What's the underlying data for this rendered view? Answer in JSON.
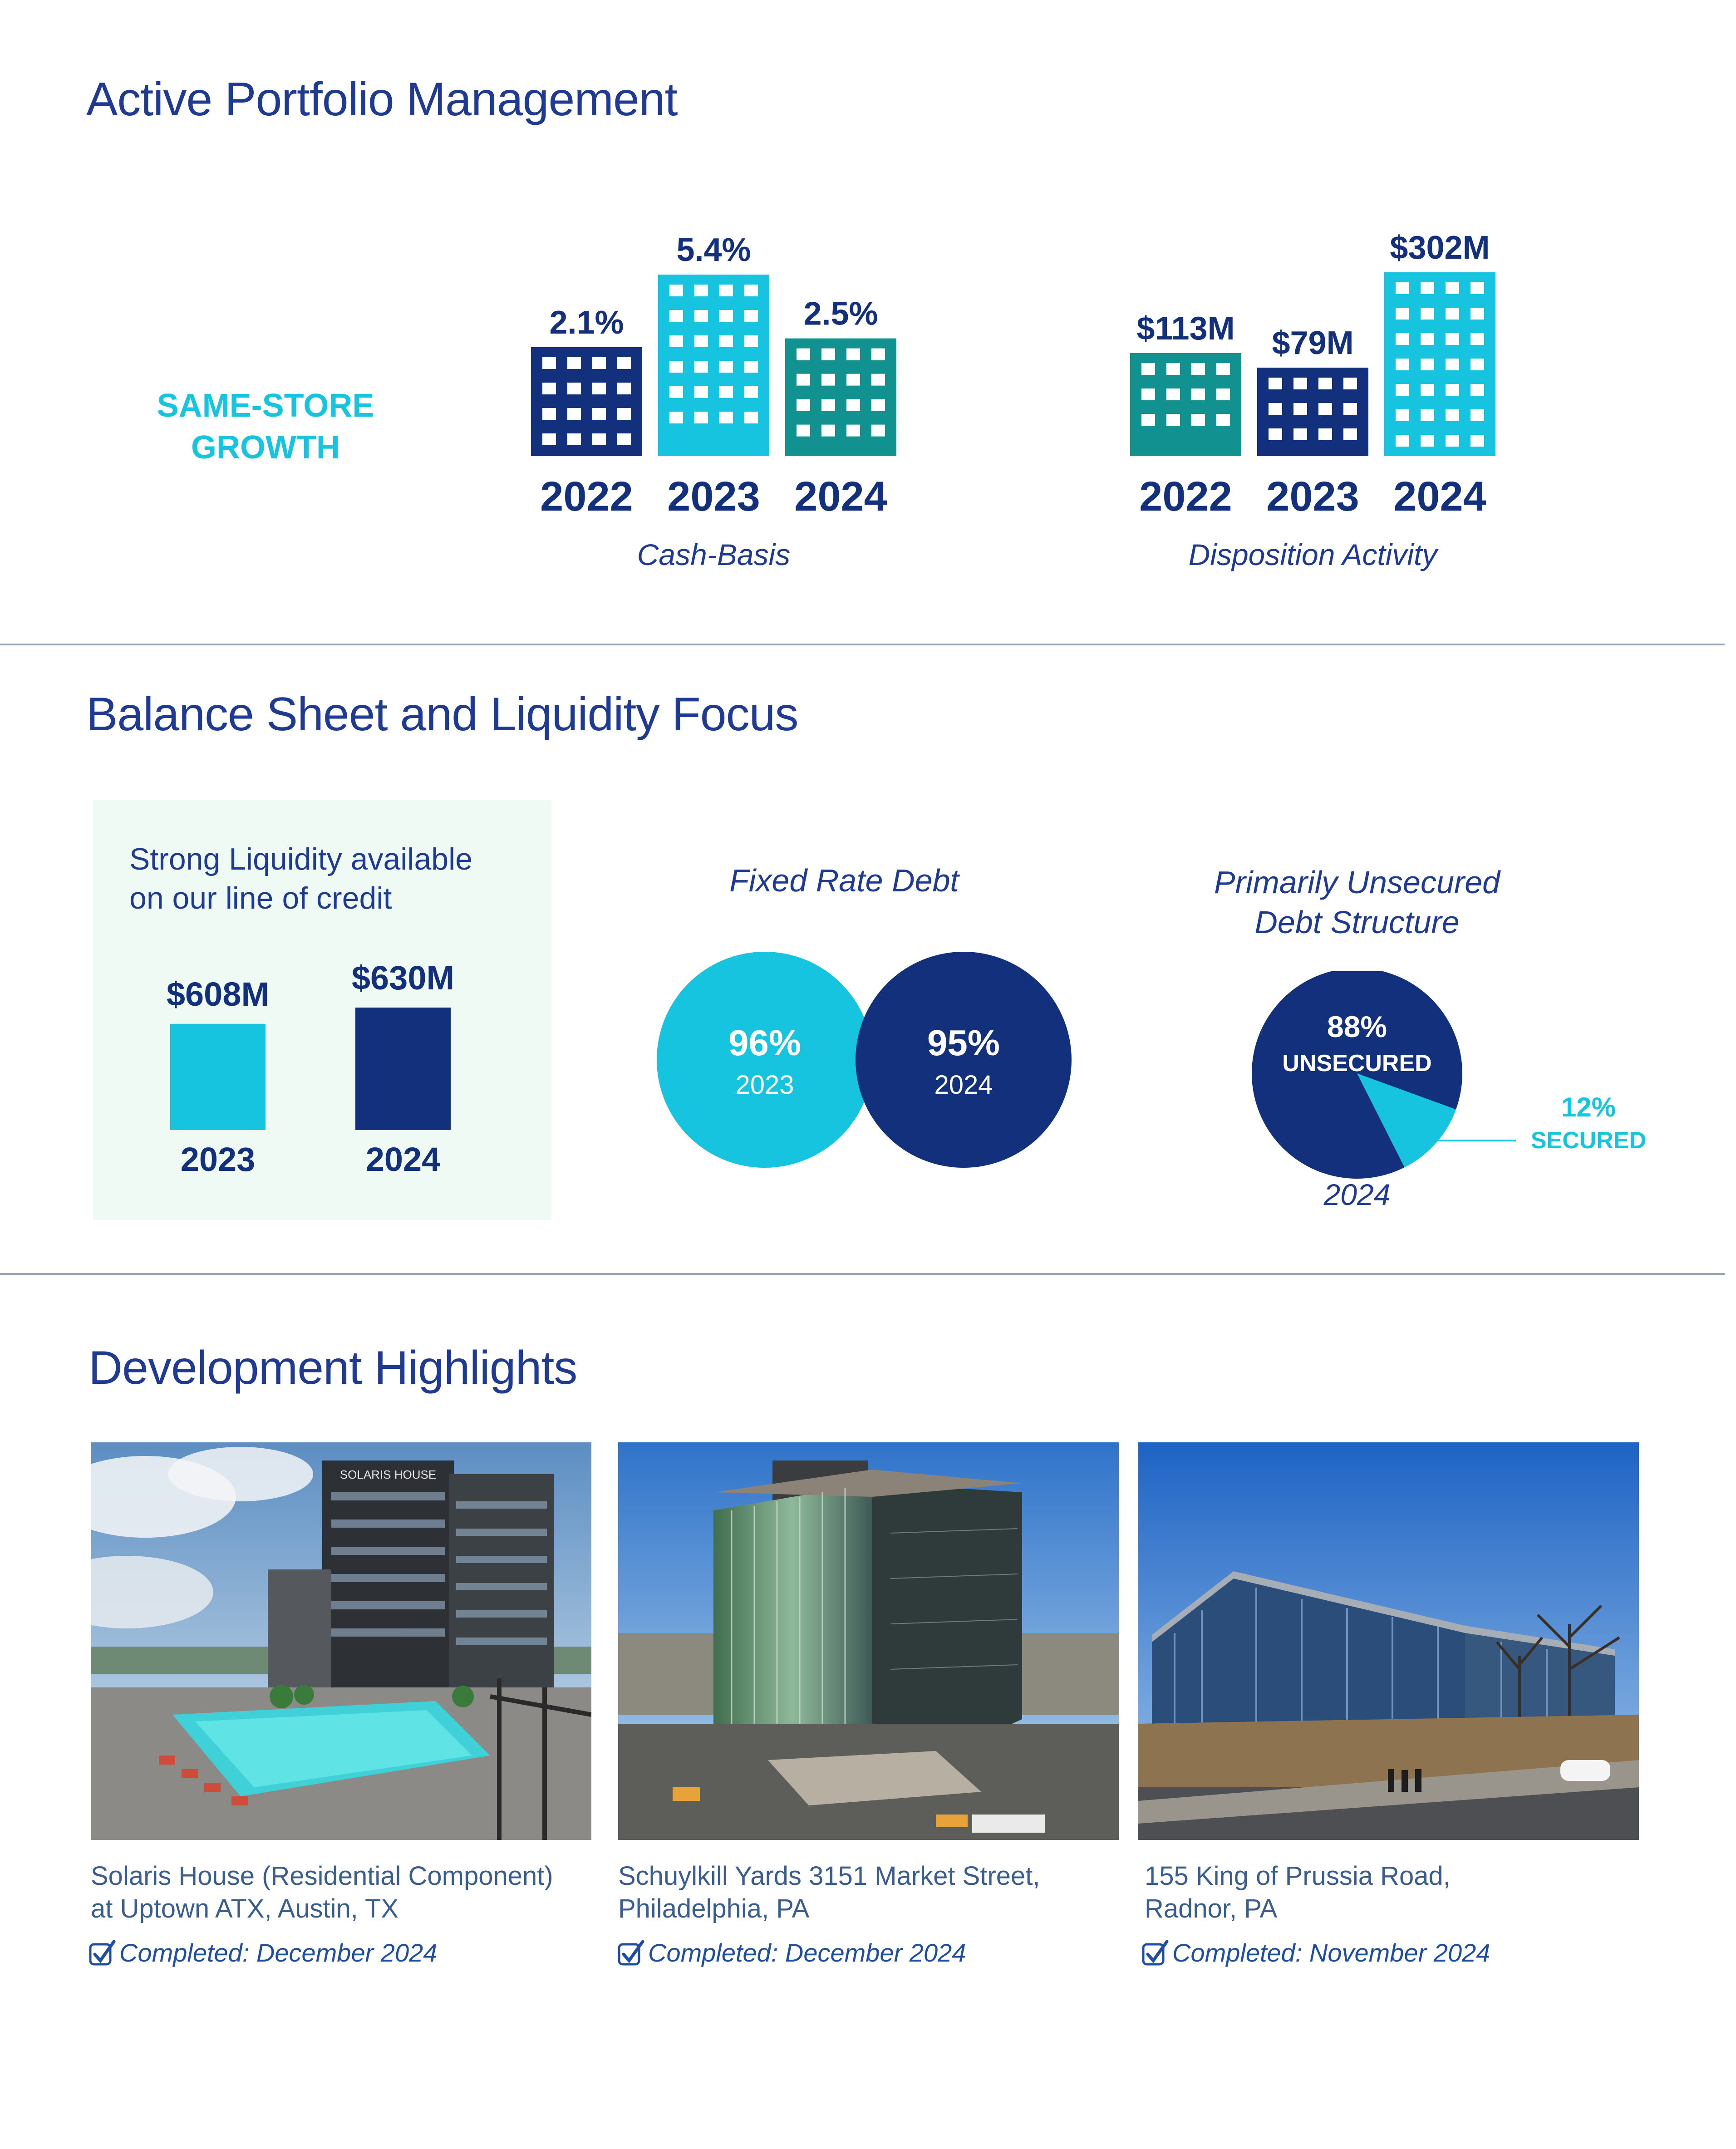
{
  "sections": {
    "portfolio": {
      "title": "Active Portfolio Management"
    },
    "balance": {
      "title": "Balance Sheet and Liquidity Focus"
    },
    "development": {
      "title": "Development Highlights"
    }
  },
  "same_store": {
    "label_line1": "SAME-STORE",
    "label_line2": "GROWTH"
  },
  "colors": {
    "navy": "#13307c",
    "cyan": "#17c4e0",
    "teal": "#11918f",
    "mint": "#eefaf3"
  },
  "chart_data": [
    {
      "type": "bar",
      "caption": "Cash-Basis",
      "categories": [
        "2022",
        "2023",
        "2024"
      ],
      "values": [
        2.1,
        5.4,
        2.5
      ],
      "value_labels": [
        "2.1%",
        "5.4%",
        "2.5%"
      ],
      "colors": [
        "#13307c",
        "#17c4e0",
        "#11918f"
      ]
    },
    {
      "type": "bar",
      "caption": "Disposition Activity",
      "categories": [
        "2022",
        "2023",
        "2024"
      ],
      "values": [
        113,
        79,
        302
      ],
      "value_labels": [
        "$113M",
        "$79M",
        "$302M"
      ],
      "colors": [
        "#11918f",
        "#13307c",
        "#17c4e0"
      ]
    },
    {
      "type": "bar",
      "title": "Strong Liquidity available on our line of credit",
      "title_line1": "Strong Liquidity available",
      "title_line2": "on our line of credit",
      "categories": [
        "2023",
        "2024"
      ],
      "values": [
        608,
        630
      ],
      "value_labels": [
        "$608M",
        "$630M"
      ],
      "colors": [
        "#17c4e0",
        "#13307c"
      ]
    },
    {
      "type": "pie",
      "title": "Fixed Rate Debt",
      "slices": [
        {
          "year": "2023",
          "value": 96,
          "label": "96%",
          "color": "#17c4e0"
        },
        {
          "year": "2024",
          "value": 95,
          "label": "95%",
          "color": "#13307c"
        }
      ]
    },
    {
      "type": "pie",
      "title_line1": "Primarily Unsecured",
      "title_line2": "Debt Structure",
      "year": "2024",
      "slices": [
        {
          "name": "UNSECURED",
          "value": 88,
          "label": "88%",
          "color": "#13307c"
        },
        {
          "name": "SECURED",
          "value": 12,
          "label": "12%",
          "color": "#17c4e0"
        }
      ]
    }
  ],
  "projects": [
    {
      "name_line1": "Solaris House (Residential Component)",
      "name_line2": "at Uptown ATX, Austin, TX",
      "status": "Completed: December 2024",
      "sign": "SOLARIS HOUSE"
    },
    {
      "name_line1": "Schuylkill Yards 3151 Market Street,",
      "name_line2": "Philadelphia, PA",
      "status": "Completed: December 2024"
    },
    {
      "name_line1": "155 King of Prussia Road,",
      "name_line2": "Radnor, PA",
      "status": "Completed: November 2024"
    }
  ]
}
